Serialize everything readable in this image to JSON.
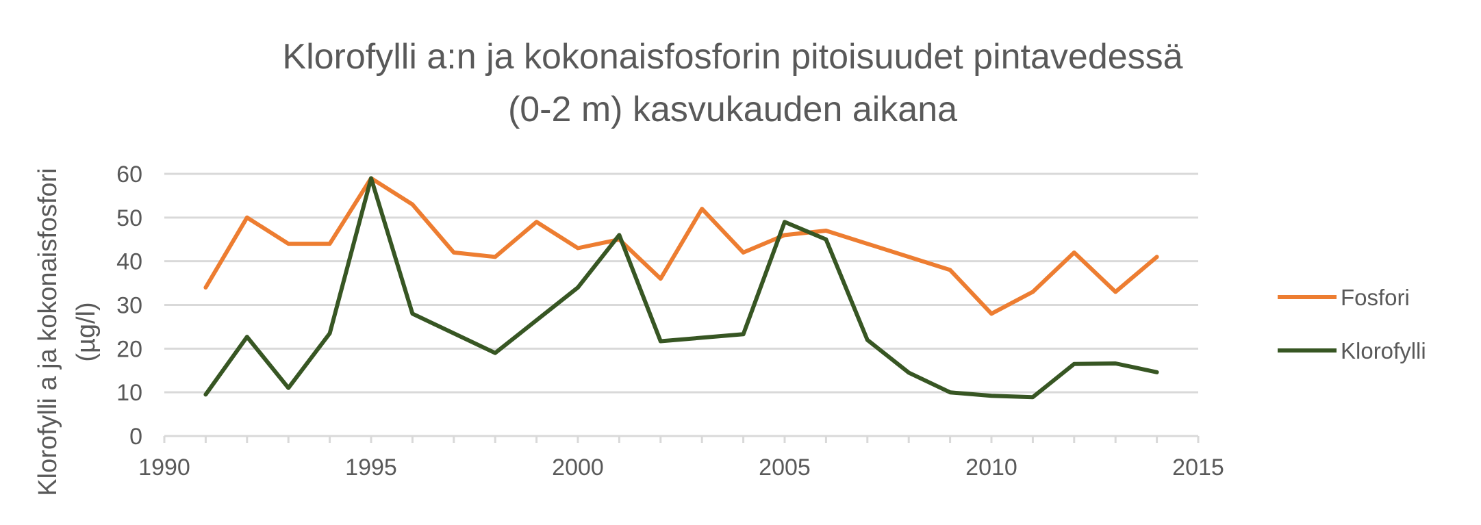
{
  "chart_data": {
    "type": "line",
    "title_line1": "Klorofylli a:n ja kokonaisfosforin pitoisuudet pintavedessä",
    "title_line2": "(0-2 m) kasvukauden aikana",
    "ylabel_line1": "Klorofylli a ja kokonaisfosfori",
    "ylabel_line2": "(µg/l)",
    "xlabel": "",
    "xlim": [
      1990,
      2015
    ],
    "ylim": [
      0,
      60
    ],
    "x_ticks": [
      1990,
      1995,
      2000,
      2005,
      2010,
      2015
    ],
    "y_ticks": [
      0,
      10,
      20,
      30,
      40,
      50,
      60
    ],
    "grid": "horizontal",
    "legend_position": "right",
    "series": [
      {
        "name": "Fosfori",
        "color": "#ED7D31",
        "points": [
          [
            1991,
            34
          ],
          [
            1992,
            50
          ],
          [
            1993,
            44
          ],
          [
            1994,
            44
          ],
          [
            1995,
            59
          ],
          [
            1996,
            53
          ],
          [
            1997,
            42
          ],
          [
            1998,
            41
          ],
          [
            1999,
            49
          ],
          [
            2000,
            43
          ],
          [
            2001,
            45
          ],
          [
            2002,
            36
          ],
          [
            2003,
            52
          ],
          [
            2004,
            42
          ],
          [
            2005,
            46
          ],
          [
            2006,
            47
          ],
          [
            2009,
            38
          ],
          [
            2010,
            28
          ],
          [
            2011,
            33
          ],
          [
            2012,
            42
          ],
          [
            2013,
            33
          ],
          [
            2014,
            41
          ]
        ]
      },
      {
        "name": "Klorofylli",
        "color": "#375623",
        "points": [
          [
            1991,
            9.5
          ],
          [
            1992,
            22.7
          ],
          [
            1993,
            11
          ],
          [
            1994,
            23.5
          ],
          [
            1995,
            59
          ],
          [
            1996,
            28
          ],
          [
            1998,
            19
          ],
          [
            2000,
            34
          ],
          [
            2001,
            46
          ],
          [
            2002,
            21.7
          ],
          [
            2004,
            23.3
          ],
          [
            2005,
            49
          ],
          [
            2006,
            45
          ],
          [
            2007,
            22
          ],
          [
            2008,
            14.5
          ],
          [
            2009,
            10
          ],
          [
            2010,
            9.2
          ],
          [
            2011,
            8.9
          ],
          [
            2012,
            16.5
          ],
          [
            2013,
            16.6
          ],
          [
            2014,
            14.6
          ]
        ]
      }
    ]
  }
}
